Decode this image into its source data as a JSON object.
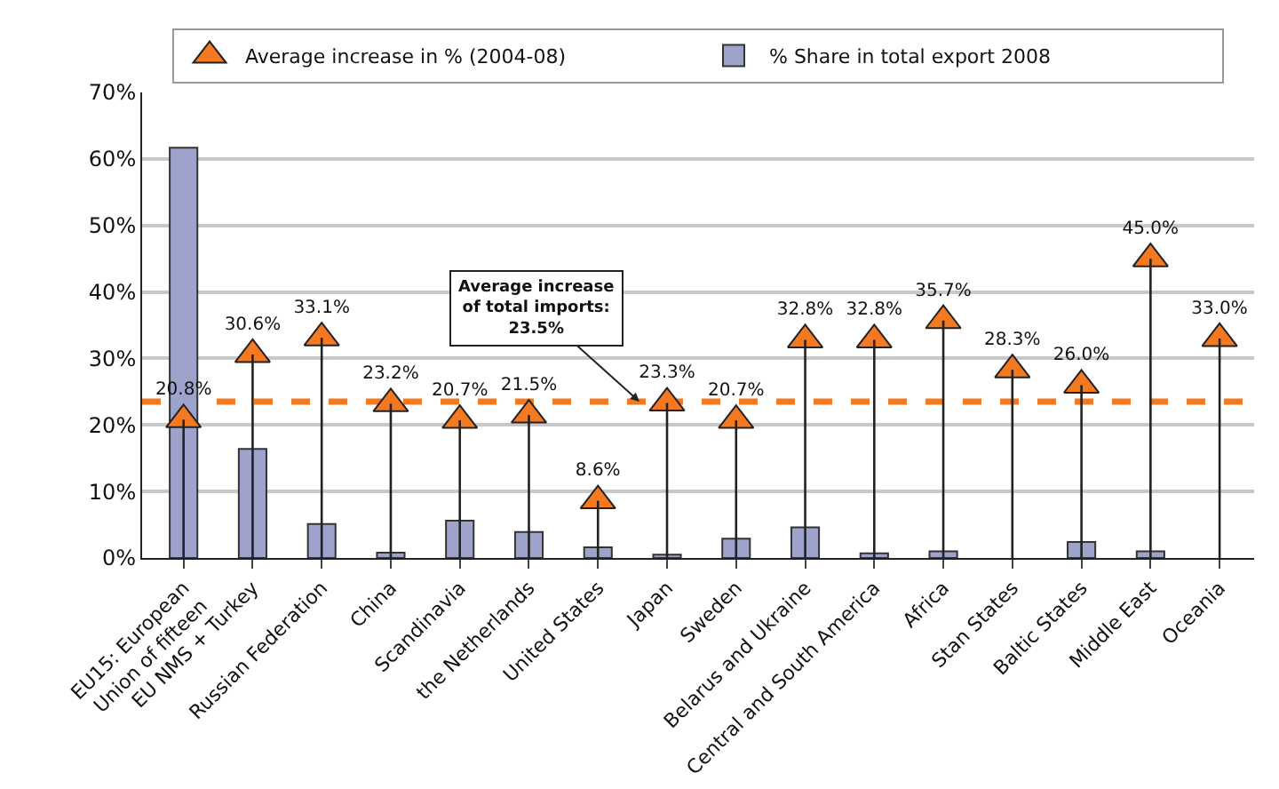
{
  "chart_data": {
    "type": "bar",
    "categories": [
      "EU15: European\nUnion of fifteen",
      "EU NMS + Turkey",
      "Russian Federation",
      "China",
      "Scandinavia",
      "the Netherlands",
      "United States",
      "Japan",
      "Sweden",
      "Belarus and Ukraine",
      "Central and South America",
      "Africa",
      "Stan States",
      "Baltic States",
      "Middle East",
      "Oceania"
    ],
    "series": [
      {
        "name": "Average increase in % (2004-08)",
        "type": "lollipop",
        "color": "#f47920",
        "marker": "triangle",
        "values": [
          20.8,
          30.6,
          33.1,
          23.2,
          20.7,
          21.5,
          8.6,
          23.3,
          20.7,
          32.8,
          32.8,
          35.7,
          28.3,
          26.0,
          45.0,
          33.0
        ],
        "value_labels": [
          "20.8%",
          "30.6%",
          "33.1%",
          "23.2%",
          "20.7%",
          "21.5%",
          "8.6%",
          "23.3%",
          "20.7%",
          "32.8%",
          "32.8%",
          "35.7%",
          "28.3%",
          "26.0%",
          "45.0%",
          "33.0%"
        ]
      },
      {
        "name": "% Share in total export 2008",
        "color": "#9ea3cc",
        "values": [
          61.7,
          16.4,
          5.1,
          0.8,
          5.6,
          3.9,
          1.6,
          0.5,
          2.9,
          4.6,
          0.7,
          1.0,
          null,
          2.4,
          1.0,
          null
        ]
      }
    ],
    "ylim": [
      0,
      70
    ],
    "yticks": [
      {
        "value": 0,
        "label": "0%"
      },
      {
        "value": 10,
        "label": "10%"
      },
      {
        "value": 20,
        "label": "20%"
      },
      {
        "value": 30,
        "label": "30%"
      },
      {
        "value": 40,
        "label": "40%"
      },
      {
        "value": 50,
        "label": "50%"
      },
      {
        "value": 60,
        "label": "60%"
      },
      {
        "value": 70,
        "label": "70%"
      }
    ],
    "grid": "y",
    "legend": "top",
    "ref_lines": [
      {
        "axis": "y",
        "value": 23.5,
        "label": "Average increase\nof total imports:\n23.5%",
        "color": "#f47920",
        "line_style": "dashed"
      }
    ]
  }
}
